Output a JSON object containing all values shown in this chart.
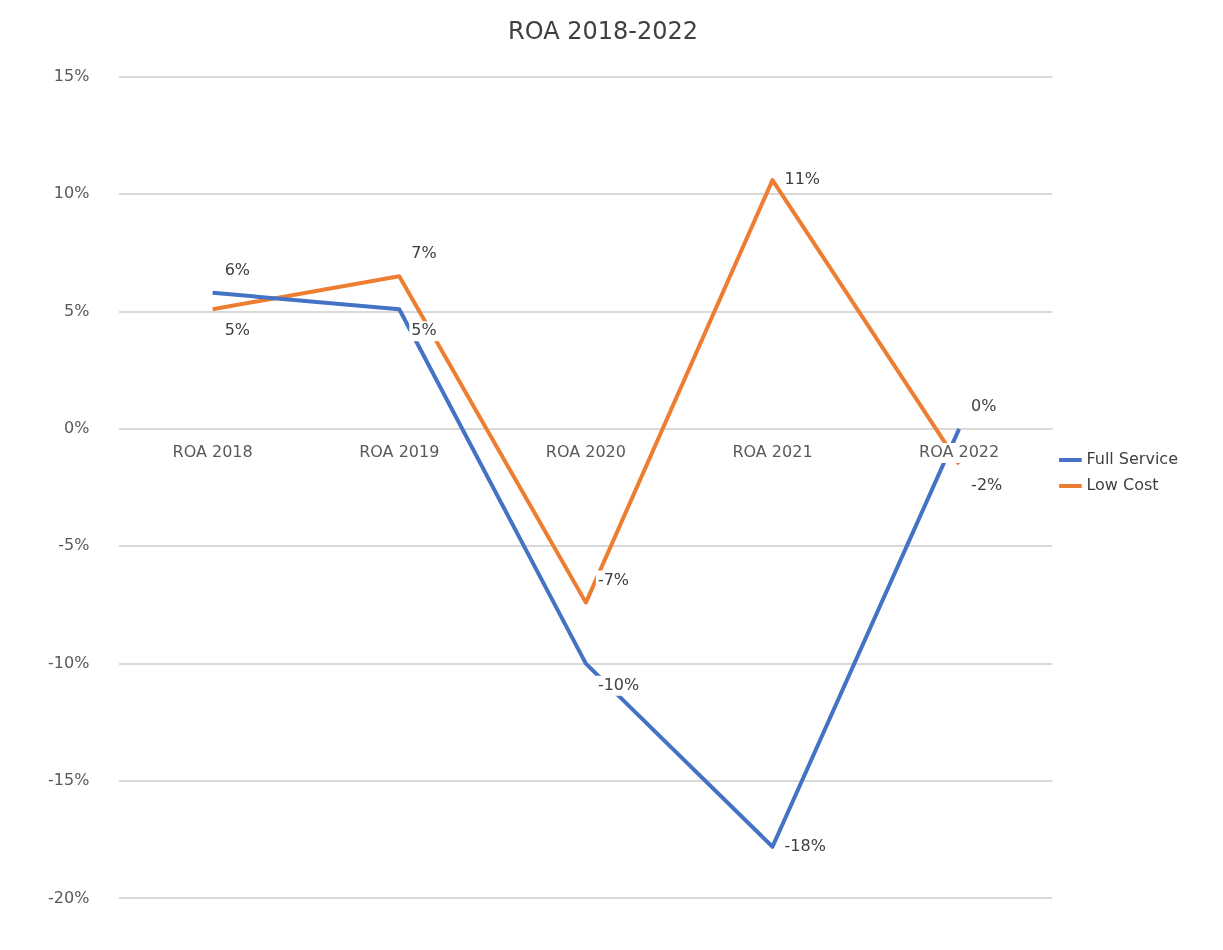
{
  "chart_data": {
    "type": "line",
    "title": "ROA 2018-2022",
    "categories": [
      "ROA 2018",
      "ROA 2019",
      "ROA 2020",
      "ROA 2021",
      "ROA 2022"
    ],
    "series": [
      {
        "name": "Full Service",
        "color": "#4472c4",
        "values": [
          5.8,
          5.1,
          -10,
          -17.8,
          0
        ],
        "value_labels": [
          "6%",
          "5%",
          "-10%",
          "-18%",
          "0%"
        ]
      },
      {
        "name": "Low Cost",
        "color": "#ed7d31",
        "values": [
          5.1,
          6.5,
          -7.4,
          10.6,
          -1.5
        ],
        "value_labels": [
          "5%",
          "7%",
          "-7%",
          "11%",
          "-2%"
        ]
      }
    ],
    "ylim": [
      -20,
      15
    ],
    "yticks": [
      {
        "value": -20,
        "label": "-20%"
      },
      {
        "value": -15,
        "label": "-15%"
      },
      {
        "value": -10,
        "label": "-10%"
      },
      {
        "value": -5,
        "label": "-5%"
      },
      {
        "value": 0,
        "label": "0%"
      },
      {
        "value": 5,
        "label": "5%"
      },
      {
        "value": 10,
        "label": "10%"
      },
      {
        "value": 15,
        "label": "15%"
      }
    ],
    "grid": "y",
    "legend": "right",
    "marker": "none",
    "line_style": "solid"
  }
}
